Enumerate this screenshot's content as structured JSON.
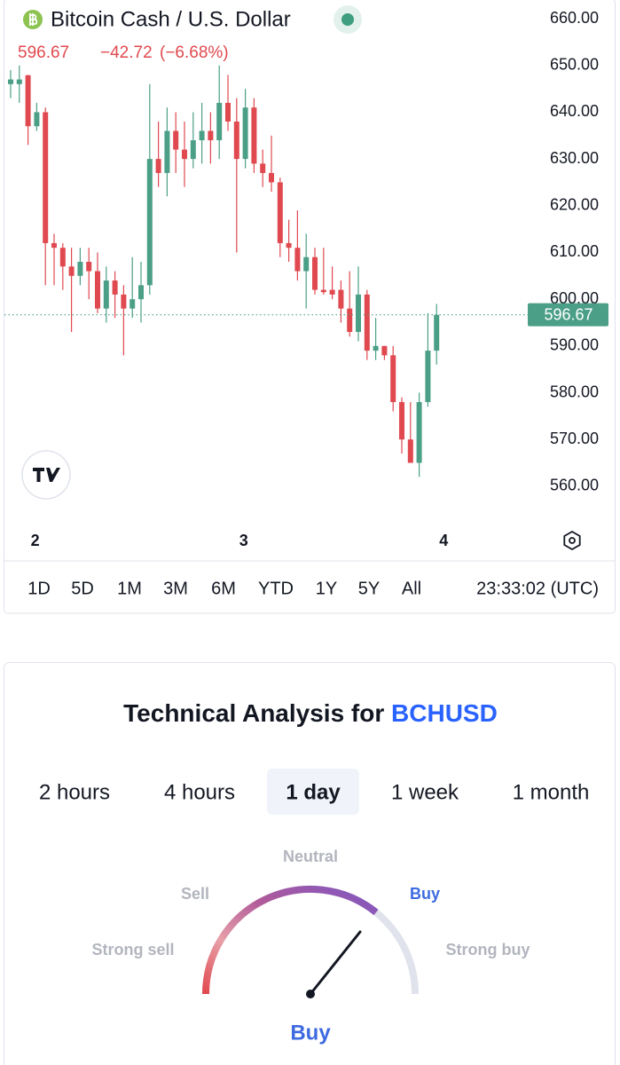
{
  "chart_data": {
    "type": "candlestick",
    "title": "Bitcoin Cash / U.S. Dollar",
    "quote": {
      "price": "596.67",
      "change": "−42.72",
      "change_percent": "(−6.68%)"
    },
    "categories": [
      null,
      null,
      "2",
      null,
      null,
      null,
      null,
      null,
      null,
      null,
      null,
      null,
      null,
      null,
      null,
      null,
      null,
      null,
      null,
      null,
      null,
      null,
      null,
      null,
      null,
      null,
      "3",
      null,
      null,
      null,
      null,
      null,
      null,
      null,
      null,
      null,
      null,
      null,
      null,
      null,
      null,
      null,
      null,
      null,
      null,
      null,
      null,
      null,
      null,
      "4"
    ],
    "open": [
      646,
      646,
      647.9,
      637,
      640,
      612,
      611,
      607,
      605,
      608,
      606,
      598,
      604,
      601,
      598,
      600,
      603,
      630,
      627,
      636,
      632,
      630,
      634,
      636,
      634,
      642,
      638,
      630,
      641,
      629,
      627,
      625,
      612,
      611,
      606,
      609,
      602,
      602,
      602,
      598,
      593,
      601,
      589,
      590,
      588,
      578,
      570,
      565,
      578,
      589
    ],
    "high": [
      649,
      650,
      648,
      642,
      641,
      614,
      612,
      611,
      611,
      611,
      610,
      607,
      606,
      603,
      609,
      608,
      646,
      638,
      641,
      640,
      638,
      640,
      642,
      640,
      650,
      648,
      643,
      645,
      643,
      632,
      635,
      626,
      617,
      619,
      614,
      611,
      611,
      607,
      604,
      606,
      607,
      602,
      596,
      590,
      590,
      579,
      578,
      580,
      597,
      599
    ],
    "low": [
      643,
      642,
      633,
      636,
      603,
      603,
      602,
      593,
      603,
      600,
      597,
      595,
      596,
      588,
      596,
      595,
      601,
      624,
      622,
      627,
      624,
      628,
      629,
      629,
      630,
      636,
      610,
      628,
      627,
      624,
      623,
      609,
      608,
      604,
      598,
      601,
      601,
      600,
      595,
      592,
      591,
      587,
      587,
      587,
      576,
      567,
      565,
      562,
      577,
      586
    ],
    "close": [
      647,
      647,
      637,
      640,
      612,
      611,
      607,
      605,
      608,
      606,
      598,
      604,
      601,
      598,
      600,
      603,
      630,
      627,
      636,
      632,
      630,
      634,
      636,
      634,
      642,
      638,
      630,
      641,
      629,
      627,
      625,
      612,
      611,
      606,
      609,
      602,
      601.5,
      601,
      598,
      593,
      601,
      589,
      590,
      588,
      578,
      570,
      565,
      578,
      589,
      596.67
    ],
    "up_color": "#4c9f87",
    "down_color": "#e0494f",
    "ylim": [
      552,
      664
    ],
    "yticks": [
      {
        "value": 560,
        "label": "560.00"
      },
      {
        "value": 570,
        "label": "570.00"
      },
      {
        "value": 580,
        "label": "580.00"
      },
      {
        "value": 590,
        "label": "590.00"
      },
      {
        "value": 600,
        "label": "600.00"
      },
      {
        "value": 610,
        "label": "610.00"
      },
      {
        "value": 620,
        "label": "620.00"
      },
      {
        "value": 630,
        "label": "630.00"
      },
      {
        "value": 640,
        "label": "640.00"
      },
      {
        "value": 650,
        "label": "650.00"
      },
      {
        "value": 660,
        "label": "660.00"
      }
    ],
    "last_price": 596.67,
    "ranges": [
      "1D",
      "5D",
      "1M",
      "3M",
      "6M",
      "YTD",
      "1Y",
      "5Y",
      "All"
    ],
    "time": "23:33:02 (UTC)"
  },
  "technical_analysis": {
    "title": "Technical Analysis for",
    "symbol": "BCHUSD",
    "tabs": [
      "2 hours",
      "4 hours",
      "1 day",
      "1 week",
      "1 month"
    ],
    "selected": 2,
    "gauge_labels": {
      "strong_sell": "Strong sell",
      "sell": "Sell",
      "neutral": "Neutral",
      "buy": "Buy",
      "strong_buy": "Strong buy"
    },
    "result": "Buy"
  }
}
